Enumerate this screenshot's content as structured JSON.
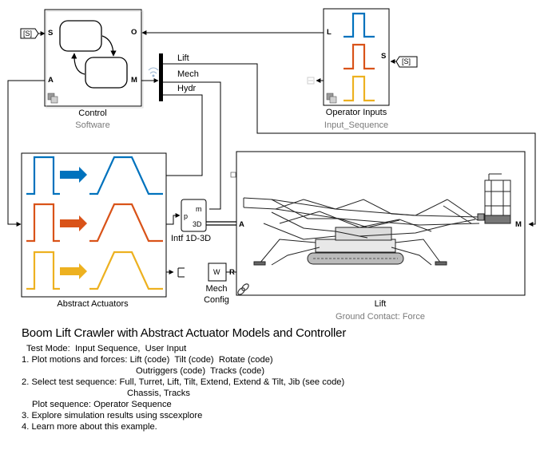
{
  "colors": {
    "blue": "#0072bd",
    "orange": "#d95319",
    "yellow": "#edb120",
    "line": "#000000",
    "subtitle": "#7a7a7a",
    "link": "#0000ee"
  },
  "blocks": {
    "control": {
      "label": "Control",
      "sublabel": "Software",
      "ports": {
        "s": "S",
        "o": "O",
        "a": "A",
        "m": "M"
      }
    },
    "operator_inputs": {
      "label": "Operator Inputs",
      "sublabel": "Input_Sequence",
      "ports": {
        "l": "L",
        "s": "S"
      }
    },
    "abstract_actuators": {
      "label": "Abstract Actuators"
    },
    "intf": {
      "label": "Intf 1D-3D",
      "ports": {
        "m": "m",
        "p": "p",
        "three_d": "3D"
      }
    },
    "mech_config": {
      "label_line1": "Mech",
      "label_line2": "Config",
      "icon_text": "W",
      "port": "R"
    },
    "lift": {
      "label": "Lift",
      "sublabel": "Ground Contact: Force",
      "ports": {
        "a": "A",
        "m": "M"
      }
    },
    "bus": {
      "signals": [
        "Lift",
        "Mech",
        "Hydr"
      ]
    },
    "goto_tags": {
      "left": "[S]",
      "right": "[S]"
    }
  },
  "annotation": {
    "title": "Boom Lift Crawler with Abstract Actuator Models and Controller",
    "test_mode_label": "Test Mode:",
    "test_mode_links": [
      "Input Sequence,",
      "User Input"
    ],
    "item1_prefix": "1. Plot motions and forces:",
    "item1_links_row1": [
      "Lift (code)",
      "Tilt (code)",
      "Rotate (code)"
    ],
    "item1_links_row2": [
      "Outriggers (code)",
      "Tracks (code)"
    ],
    "item2_prefix": "2. Select test sequence:",
    "item2_links_row1": [
      "Full,",
      "Turret,",
      "Lift,",
      "Tilt,",
      "Extend,",
      "Extend & Tilt,",
      "Jib (see code)"
    ],
    "item2_links_row2": [
      "Chassis,",
      "Tracks"
    ],
    "plot_sequence": "Plot sequence: Operator Sequence",
    "item3": "3. Explore simulation results using sscexplore",
    "item4": "4. Learn more about this example."
  }
}
